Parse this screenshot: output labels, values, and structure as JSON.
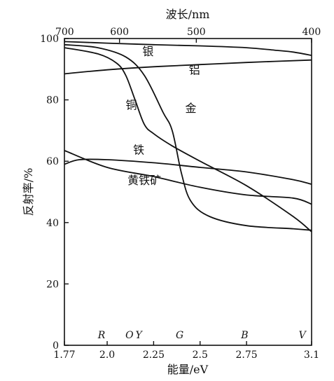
{
  "chart_data": {
    "type": "line",
    "title": "",
    "top_axis": {
      "label": "波长/nm",
      "ticks": [
        {
          "value": 700,
          "label": "700"
        },
        {
          "value": 600,
          "label": "600"
        },
        {
          "value": 500,
          "label": "500"
        },
        {
          "value": 400,
          "label": "400"
        }
      ]
    },
    "xlabel": "能量/eV",
    "xlim": [
      1.77,
      3.1
    ],
    "xticks": [
      {
        "value": 1.77,
        "label": "1.77"
      },
      {
        "value": 2.0,
        "label": "2.0"
      },
      {
        "value": 2.25,
        "label": "2.25"
      },
      {
        "value": 2.5,
        "label": "2.5"
      },
      {
        "value": 2.75,
        "label": "2.75"
      },
      {
        "value": 3.1,
        "label": "3.1"
      }
    ],
    "ylabel": "反射率/%",
    "ylim": [
      0,
      100
    ],
    "yticks": [
      0,
      20,
      40,
      60,
      80,
      100
    ],
    "grid": false,
    "color_letters": [
      {
        "label": "R",
        "x": 1.97
      },
      {
        "label": "O",
        "x": 2.12
      },
      {
        "label": "Y",
        "x": 2.17
      },
      {
        "label": "G",
        "x": 2.39
      },
      {
        "label": "B",
        "x": 2.74
      },
      {
        "label": "V",
        "x": 3.05
      }
    ],
    "series": [
      {
        "name": "银",
        "label_at": [
          2.22,
          94.5
        ],
        "x": [
          1.77,
          2.0,
          2.25,
          2.5,
          2.75,
          2.9,
          3.0,
          3.1
        ],
        "y": [
          99.0,
          98.5,
          98.0,
          97.6,
          97.0,
          96.2,
          95.6,
          94.5
        ]
      },
      {
        "name": "铝",
        "label_at": [
          2.47,
          88.5
        ],
        "x": [
          1.77,
          2.0,
          2.25,
          2.5,
          2.75,
          3.1
        ],
        "y": [
          88.5,
          89.8,
          90.8,
          91.5,
          92.2,
          93.0
        ]
      },
      {
        "name": "铜",
        "label_at": [
          2.13,
          77.0
        ],
        "x": [
          1.77,
          1.95,
          2.05,
          2.1,
          2.15,
          2.2,
          2.25,
          2.35,
          2.5,
          2.75,
          3.0,
          3.1
        ],
        "y": [
          97.0,
          95.0,
          92.0,
          88.0,
          80.0,
          72.0,
          69.0,
          65.0,
          60.0,
          52.0,
          42.0,
          37.0
        ]
      },
      {
        "name": "金",
        "label_at": [
          2.45,
          76.0
        ],
        "x": [
          1.77,
          1.95,
          2.1,
          2.2,
          2.3,
          2.35,
          2.4,
          2.45,
          2.55,
          2.75,
          3.0,
          3.1
        ],
        "y": [
          98.0,
          97.0,
          94.0,
          88.0,
          76.0,
          70.0,
          56.0,
          47.0,
          42.0,
          39.0,
          38.0,
          37.5
        ]
      },
      {
        "name": "铁",
        "label_at": [
          2.17,
          62.5
        ],
        "x": [
          1.77,
          1.85,
          2.0,
          2.25,
          2.5,
          2.75,
          3.0,
          3.1
        ],
        "y": [
          59.0,
          60.5,
          60.5,
          59.5,
          58.0,
          56.5,
          54.0,
          52.5
        ]
      },
      {
        "name": "黄铁矿",
        "label_at": [
          2.2,
          52.5
        ],
        "x": [
          1.77,
          2.0,
          2.25,
          2.5,
          2.75,
          3.0,
          3.1
        ],
        "y": [
          63.5,
          58.0,
          55.0,
          51.5,
          49.0,
          48.0,
          46.0
        ]
      }
    ]
  }
}
